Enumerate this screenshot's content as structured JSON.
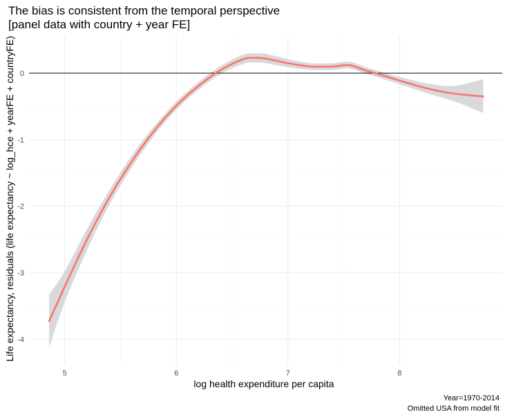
{
  "chart_data": {
    "type": "line",
    "title": "The bias is consistent from the temporal perspective",
    "subtitle": "[panel data with country + year FE]",
    "xlabel": "log health expenditure per capita",
    "ylabel": "Life expectancy, residuals (life expectancy ~ log_hce + yearFE + countryFE)",
    "caption_lines": [
      "Year=1970-2014",
      "Omitted USA from model fit"
    ],
    "xlim": [
      4.68,
      8.92
    ],
    "ylim": [
      -4.38,
      0.55
    ],
    "x_ticks": [
      5,
      6,
      7,
      8
    ],
    "x_tick_labels": [
      "5",
      "6",
      "7",
      "8"
    ],
    "y_ticks": [
      0,
      -1,
      -2,
      -3,
      -4
    ],
    "y_tick_labels": [
      "0",
      "-1",
      "-2",
      "-3",
      "-4"
    ],
    "grid": true,
    "reference_line": {
      "y": 0,
      "color": "#000000"
    },
    "series": [
      {
        "color": "#F8766D",
        "ribbon_color": "#d9d9d9",
        "points": [
          {
            "x": 4.86,
            "y": -3.73,
            "lo": -4.13,
            "hi": -3.33
          },
          {
            "x": 5.0,
            "y": -3.21,
            "lo": -3.44,
            "hi": -2.98
          },
          {
            "x": 5.2,
            "y": -2.5,
            "lo": -2.66,
            "hi": -2.34
          },
          {
            "x": 5.4,
            "y": -1.87,
            "lo": -1.98,
            "hi": -1.76
          },
          {
            "x": 5.6,
            "y": -1.33,
            "lo": -1.42,
            "hi": -1.24
          },
          {
            "x": 5.8,
            "y": -0.87,
            "lo": -0.94,
            "hi": -0.8
          },
          {
            "x": 6.0,
            "y": -0.49,
            "lo": -0.55,
            "hi": -0.43
          },
          {
            "x": 6.2,
            "y": -0.19,
            "lo": -0.25,
            "hi": -0.13
          },
          {
            "x": 6.4,
            "y": 0.05,
            "lo": -0.01,
            "hi": 0.11
          },
          {
            "x": 6.6,
            "y": 0.21,
            "lo": 0.14,
            "hi": 0.28
          },
          {
            "x": 6.7,
            "y": 0.23,
            "lo": 0.16,
            "hi": 0.3
          },
          {
            "x": 6.8,
            "y": 0.22,
            "lo": 0.15,
            "hi": 0.29
          },
          {
            "x": 7.0,
            "y": 0.15,
            "lo": 0.09,
            "hi": 0.21
          },
          {
            "x": 7.2,
            "y": 0.1,
            "lo": 0.05,
            "hi": 0.15
          },
          {
            "x": 7.4,
            "y": 0.1,
            "lo": 0.05,
            "hi": 0.15
          },
          {
            "x": 7.55,
            "y": 0.12,
            "lo": 0.07,
            "hi": 0.17
          },
          {
            "x": 7.7,
            "y": 0.04,
            "lo": -0.01,
            "hi": 0.09
          },
          {
            "x": 7.9,
            "y": -0.06,
            "lo": -0.11,
            "hi": -0.01
          },
          {
            "x": 8.1,
            "y": -0.16,
            "lo": -0.22,
            "hi": -0.1
          },
          {
            "x": 8.3,
            "y": -0.25,
            "lo": -0.33,
            "hi": -0.17
          },
          {
            "x": 8.5,
            "y": -0.31,
            "lo": -0.43,
            "hi": -0.19
          },
          {
            "x": 8.75,
            "y": -0.35,
            "lo": -0.6,
            "hi": -0.09
          }
        ]
      }
    ]
  }
}
